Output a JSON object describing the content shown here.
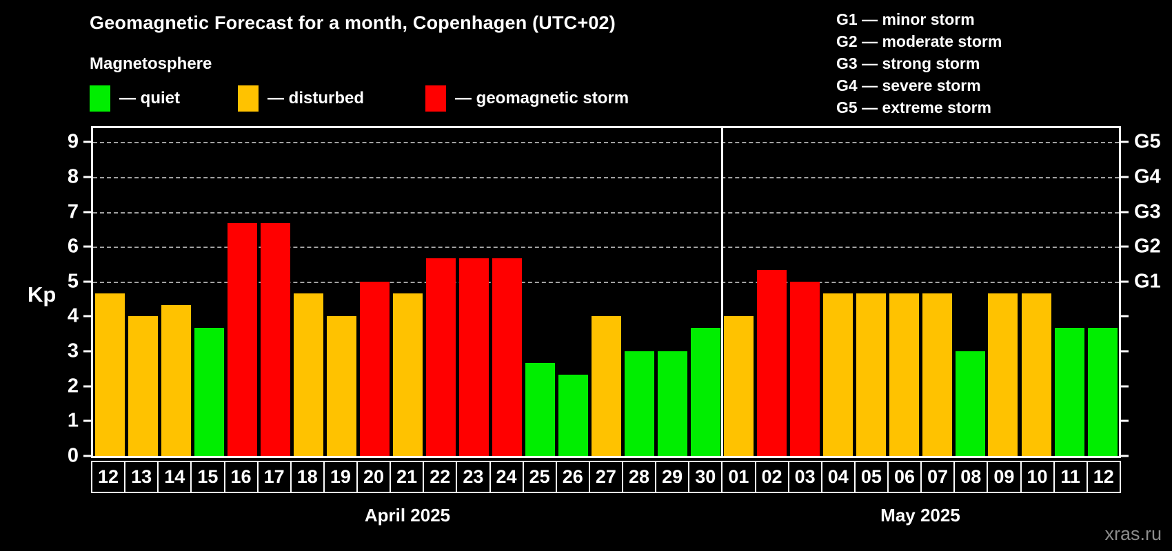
{
  "title": "Geomagnetic Forecast for a month, Copenhagen (UTC+02)",
  "subtitle": "Magnetosphere",
  "legend": {
    "quiet": "— quiet",
    "disturbed": "— disturbed",
    "storm": "— geomagnetic storm"
  },
  "g_legend": [
    "G1 — minor storm",
    "G2 — moderate storm",
    "G3 — strong storm",
    "G4 — severe storm",
    "G5 — extreme storm"
  ],
  "watermark": "xras.ru",
  "colors": {
    "quiet": "#00ee00",
    "disturbed": "#ffc200",
    "storm": "#ff0000",
    "background": "#000000",
    "frame": "#ffffff",
    "grid": "#a2a2a2",
    "watermark": "#8c8c8c"
  },
  "axes": {
    "y_label": "Kp"
  },
  "chart_data": {
    "type": "bar",
    "title": "Geomagnetic Forecast for a month, Copenhagen (UTC+02)",
    "ylabel": "Kp",
    "ylim": [
      0,
      9.4
    ],
    "yticks": [
      0,
      1,
      2,
      3,
      4,
      5,
      6,
      7,
      8,
      9
    ],
    "grid_levels": [
      5,
      6,
      7,
      8,
      9
    ],
    "grid": "dashed horizontal lines at Kp 5-9 only",
    "legend_position": "top-left",
    "right_axis": [
      {
        "kp": 5,
        "label": "G1"
      },
      {
        "kp": 6,
        "label": "G2"
      },
      {
        "kp": 7,
        "label": "G3"
      },
      {
        "kp": 8,
        "label": "G4"
      },
      {
        "kp": 9,
        "label": "G5"
      }
    ],
    "groups": [
      {
        "month": "April 2025",
        "categories": [
          "12",
          "13",
          "14",
          "15",
          "16",
          "17",
          "18",
          "19",
          "20",
          "21",
          "22",
          "23",
          "24",
          "25",
          "26",
          "27",
          "28",
          "29",
          "30"
        ],
        "values": [
          4.67,
          4.0,
          4.33,
          3.67,
          6.67,
          6.67,
          4.67,
          4.0,
          5.0,
          4.67,
          5.67,
          5.67,
          5.67,
          2.67,
          2.33,
          4.0,
          3.0,
          3.0,
          3.67
        ],
        "status": [
          "disturbed",
          "disturbed",
          "disturbed",
          "quiet",
          "storm",
          "storm",
          "disturbed",
          "disturbed",
          "storm",
          "disturbed",
          "storm",
          "storm",
          "storm",
          "quiet",
          "quiet",
          "disturbed",
          "quiet",
          "quiet",
          "quiet"
        ]
      },
      {
        "month": "May 2025",
        "categories": [
          "01",
          "02",
          "03",
          "04",
          "05",
          "06",
          "07",
          "08",
          "09",
          "10",
          "11",
          "12"
        ],
        "values": [
          4.0,
          5.33,
          5.0,
          4.67,
          4.67,
          4.67,
          4.67,
          3.0,
          4.67,
          4.67,
          3.67,
          3.67
        ],
        "status": [
          "disturbed",
          "storm",
          "storm",
          "disturbed",
          "disturbed",
          "disturbed",
          "disturbed",
          "quiet",
          "disturbed",
          "disturbed",
          "quiet",
          "quiet"
        ]
      }
    ]
  }
}
